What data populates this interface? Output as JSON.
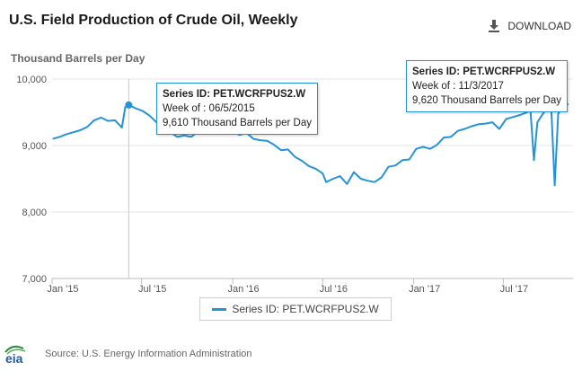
{
  "header": {
    "title": "U.S. Field Production of Crude Oil, Weekly",
    "download_label": "DOWNLOAD"
  },
  "chart_data": {
    "type": "line",
    "ylabel": "Thousand Barrels per Day",
    "ylim": [
      7000,
      10000
    ],
    "yticks": [
      "7,000",
      "8,000",
      "9,000",
      "10,000"
    ],
    "xticks": [
      "Jan '15",
      "Jul '15",
      "Jan '16",
      "Jul '16",
      "Jan '17",
      "Jul '17"
    ],
    "grid": true,
    "legend_position": "bottom-center",
    "series": [
      {
        "name": "Series ID: PET.WCRFPUS2.W",
        "color": "#2594d6",
        "x": [
          "2015-01-02",
          "2015-01-16",
          "2015-01-30",
          "2015-02-13",
          "2015-02-27",
          "2015-03-13",
          "2015-03-27",
          "2015-04-10",
          "2015-04-24",
          "2015-05-08",
          "2015-05-22",
          "2015-05-29",
          "2015-06-05",
          "2015-06-19",
          "2015-07-03",
          "2015-07-17",
          "2015-07-31",
          "2015-08-14",
          "2015-08-28",
          "2015-09-11",
          "2015-09-25",
          "2015-10-09",
          "2015-10-23",
          "2015-11-06",
          "2015-11-20",
          "2015-12-04",
          "2015-12-18",
          "2016-01-01",
          "2016-01-15",
          "2016-01-29",
          "2016-02-12",
          "2016-02-26",
          "2016-03-11",
          "2016-03-25",
          "2016-04-08",
          "2016-04-22",
          "2016-05-06",
          "2016-05-20",
          "2016-06-03",
          "2016-06-17",
          "2016-07-01",
          "2016-07-08",
          "2016-07-22",
          "2016-08-05",
          "2016-08-19",
          "2016-09-02",
          "2016-09-16",
          "2016-09-30",
          "2016-10-14",
          "2016-10-28",
          "2016-11-11",
          "2016-11-25",
          "2016-12-09",
          "2016-12-23",
          "2017-01-06",
          "2017-01-20",
          "2017-02-03",
          "2017-02-17",
          "2017-03-03",
          "2017-03-17",
          "2017-03-31",
          "2017-04-14",
          "2017-04-28",
          "2017-05-12",
          "2017-05-26",
          "2017-06-09",
          "2017-06-23",
          "2017-07-07",
          "2017-07-21",
          "2017-08-04",
          "2017-08-18",
          "2017-08-25",
          "2017-09-01",
          "2017-09-08",
          "2017-09-22",
          "2017-10-06",
          "2017-10-13",
          "2017-10-20",
          "2017-11-03",
          "2017-11-10"
        ],
        "values": [
          9100,
          9130,
          9170,
          9200,
          9230,
          9280,
          9380,
          9420,
          9370,
          9380,
          9270,
          9580,
          9610,
          9560,
          9520,
          9450,
          9350,
          9300,
          9200,
          9130,
          9150,
          9130,
          9210,
          9180,
          9200,
          9230,
          9190,
          9210,
          9160,
          9190,
          9100,
          9080,
          9070,
          9010,
          8930,
          8940,
          8830,
          8770,
          8690,
          8650,
          8580,
          8450,
          8500,
          8540,
          8420,
          8600,
          8500,
          8470,
          8450,
          8520,
          8680,
          8700,
          8780,
          8790,
          8950,
          8980,
          8950,
          9010,
          9120,
          9130,
          9220,
          9250,
          9290,
          9320,
          9330,
          9350,
          9250,
          9400,
          9430,
          9460,
          9500,
          9530,
          8780,
          9350,
          9510,
          9560,
          8400,
          9480,
          9620,
          9620
        ]
      }
    ],
    "tooltips": [
      {
        "series": "Series ID: PET.WCRFPUS2.W",
        "week": "Week of : 06/5/2015",
        "value": "9,610 Thousand Barrels per Day"
      },
      {
        "series": "Series ID: PET.WCRFPUS2.W",
        "week": "Week of : 11/3/2017",
        "value": "9,620 Thousand Barrels per Day"
      }
    ]
  },
  "legend": {
    "label": "Series ID: PET.WCRFPUS2.W"
  },
  "footer": {
    "logo_text": "eia",
    "source": "Source: U.S. Energy Information Administration"
  }
}
